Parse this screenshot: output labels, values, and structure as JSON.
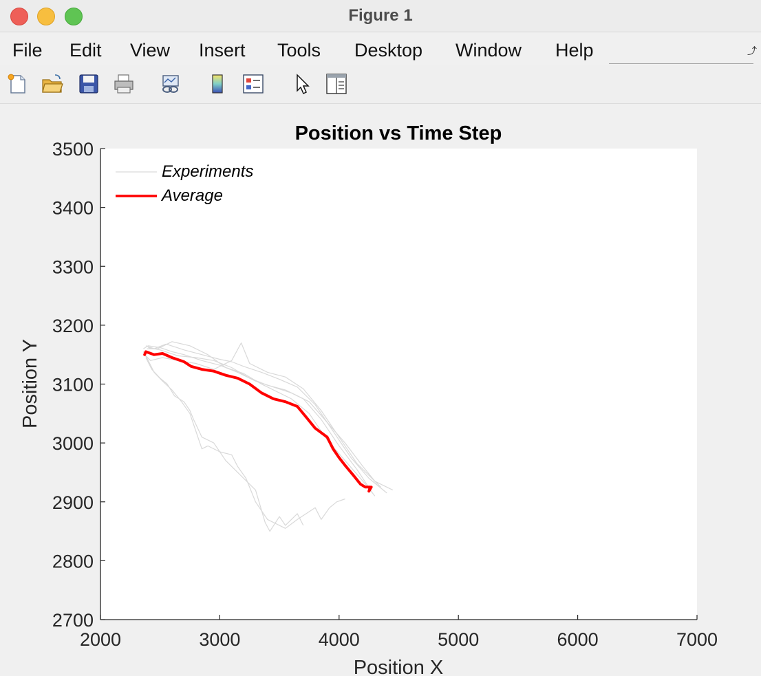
{
  "window": {
    "title": "Figure 1"
  },
  "menu": [
    "File",
    "Edit",
    "View",
    "Insert",
    "Tools",
    "Desktop",
    "Window",
    "Help"
  ],
  "toolbar": [
    "new-figure-icon",
    "open-file-icon",
    "save-icon",
    "print-icon",
    "link-plot-icon",
    "colorbar-icon",
    "legend-icon",
    "pointer-icon",
    "property-inspector-icon"
  ],
  "colors": {
    "average": "#ff0000",
    "experiments": "#d9d9d9",
    "axes_bg": "#ffffff",
    "figure_bg": "#f0f0f0"
  },
  "chart_data": {
    "type": "line",
    "title": "Position vs Time Step",
    "xlabel": "Position X",
    "ylabel": "Position Y",
    "xlim": [
      2000,
      7000
    ],
    "ylim": [
      2700,
      3500
    ],
    "xticks": [
      "2000",
      "3000",
      "4000",
      "5000",
      "6000",
      "7000"
    ],
    "yticks": [
      "2700",
      "2800",
      "2900",
      "3000",
      "3100",
      "3200",
      "3300",
      "3400",
      "3500"
    ],
    "legend": {
      "position": "top-left",
      "entries": [
        "Experiments",
        "Average"
      ]
    },
    "grid": false,
    "series": [
      {
        "name": "Average",
        "x": [
          2370,
          2380,
          2450,
          2520,
          2600,
          2700,
          2760,
          2850,
          2950,
          3050,
          3150,
          3250,
          3350,
          3450,
          3550,
          3650,
          3720,
          3800,
          3900,
          3950,
          4000,
          4050,
          4120,
          4180,
          4220,
          4260,
          4250,
          4270
        ],
        "y": [
          3150,
          3155,
          3150,
          3152,
          3145,
          3138,
          3130,
          3125,
          3122,
          3115,
          3110,
          3100,
          3085,
          3075,
          3070,
          3062,
          3045,
          3025,
          3010,
          2990,
          2975,
          2962,
          2945,
          2930,
          2925,
          2925,
          2918,
          2925
        ]
      },
      {
        "name": "Experiments",
        "x": [
          2360,
          2400,
          2500,
          2600,
          2700,
          2850,
          3000,
          3150,
          3300,
          3450,
          3600,
          3750,
          3900,
          4050,
          4200,
          4300,
          4350
        ],
        "y": [
          3160,
          3165,
          3162,
          3155,
          3150,
          3140,
          3132,
          3120,
          3105,
          3095,
          3085,
          3070,
          3035,
          3000,
          2960,
          2935,
          2925
        ]
      },
      {
        "x": [
          2380,
          2450,
          2550,
          2700,
          2850,
          3000,
          3100,
          3200,
          3350,
          3500,
          3650,
          3800,
          3950,
          4100,
          4250,
          4400
        ],
        "y": [
          3165,
          3160,
          3168,
          3158,
          3150,
          3142,
          3138,
          3130,
          3120,
          3108,
          3095,
          3065,
          3020,
          2975,
          2940,
          2915
        ]
      },
      {
        "x": [
          2370,
          2420,
          2520,
          2650,
          2800,
          2950,
          3100,
          3180,
          3250,
          3400,
          3550,
          3700,
          3850,
          4000,
          4150,
          4300,
          4450
        ],
        "y": [
          3150,
          3140,
          3145,
          3140,
          3135,
          3125,
          3140,
          3170,
          3135,
          3120,
          3112,
          3092,
          3055,
          3010,
          2965,
          2935,
          2920
        ]
      },
      {
        "x": [
          2390,
          2480,
          2600,
          2750,
          2900,
          3050,
          3200,
          3350,
          3500,
          3600,
          3750,
          3900,
          4050,
          4200,
          4300
        ],
        "y": [
          3160,
          3160,
          3172,
          3165,
          3150,
          3128,
          3118,
          3100,
          3085,
          3075,
          3050,
          3005,
          2970,
          2935,
          2910
        ]
      },
      {
        "x": [
          2360,
          2400,
          2450,
          2520,
          2600,
          2680,
          2750,
          2800,
          2850,
          2900,
          3000,
          3100,
          3150,
          3220,
          3300,
          3400,
          3550,
          3650,
          3800,
          3850,
          3920,
          3980,
          4050
        ],
        "y": [
          3155,
          3140,
          3120,
          3105,
          3090,
          3070,
          3050,
          3020,
          2990,
          2995,
          2985,
          2980,
          2960,
          2940,
          2900,
          2870,
          2855,
          2870,
          2890,
          2870,
          2890,
          2900,
          2905
        ]
      },
      {
        "x": [
          2380,
          2430,
          2500,
          2560,
          2620,
          2700,
          2750,
          2780,
          2850,
          2950,
          3050,
          3150,
          3300,
          3380,
          3420,
          3500,
          3550,
          3650,
          3700
        ],
        "y": [
          3145,
          3125,
          3110,
          3100,
          3080,
          3070,
          3055,
          3040,
          3010,
          3000,
          2970,
          2950,
          2920,
          2865,
          2850,
          2875,
          2860,
          2880,
          2860
        ]
      },
      {
        "x": [
          2400,
          2500,
          2650,
          2800,
          2950,
          3100,
          3250,
          3400,
          3550,
          3700,
          3850,
          4000,
          4150,
          4280
        ],
        "y": [
          3162,
          3158,
          3148,
          3145,
          3140,
          3128,
          3110,
          3098,
          3090,
          3075,
          3040,
          2995,
          2955,
          2915
        ]
      }
    ]
  }
}
